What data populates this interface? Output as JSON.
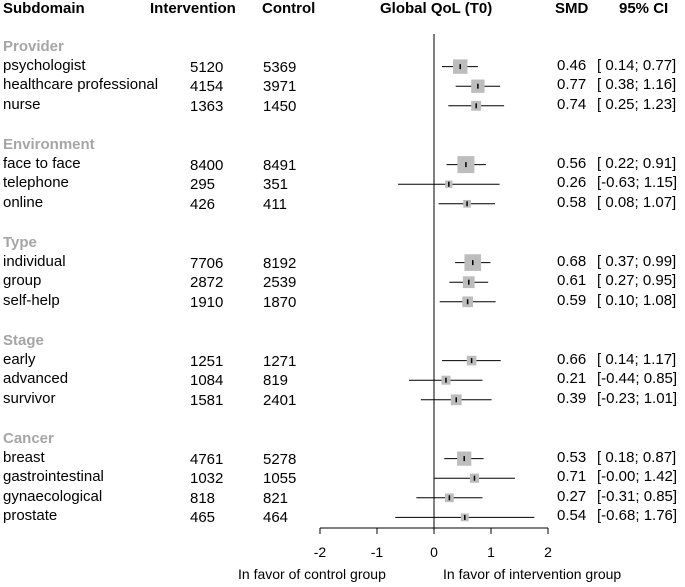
{
  "headers": {
    "subdomain": "Subdomain",
    "intervention": "Intervention",
    "control": "Control",
    "plot": "Global QoL (T0)",
    "smd": "SMD",
    "ci": "95% CI"
  },
  "x_axis_labels": {
    "left": "In favor of control group",
    "right": "In favor of intervention group"
  },
  "chart_data": {
    "type": "forest",
    "title": "Global QoL (T0)",
    "xlim": [
      -2,
      2
    ],
    "x_ticks": [
      -2,
      -1,
      0,
      1,
      2
    ],
    "reference_line": 0,
    "groups": [
      {
        "name": "Provider",
        "rows": [
          {
            "label": "psychologist",
            "intervention": 5120,
            "control": 5369,
            "smd": 0.46,
            "ci": [
              0.14,
              0.77
            ],
            "smd_text": "0.46",
            "ci_text": "[ 0.14; 0.77]"
          },
          {
            "label": "healthcare professional",
            "intervention": 4154,
            "control": 3971,
            "smd": 0.77,
            "ci": [
              0.38,
              1.16
            ],
            "smd_text": "0.77",
            "ci_text": "[ 0.38; 1.16]"
          },
          {
            "label": "nurse",
            "intervention": 1363,
            "control": 1450,
            "smd": 0.74,
            "ci": [
              0.25,
              1.23
            ],
            "smd_text": "0.74",
            "ci_text": "[ 0.25; 1.23]"
          }
        ]
      },
      {
        "name": "Environment",
        "rows": [
          {
            "label": "face to face",
            "intervention": 8400,
            "control": 8491,
            "smd": 0.56,
            "ci": [
              0.22,
              0.91
            ],
            "smd_text": "0.56",
            "ci_text": "[ 0.22; 0.91]"
          },
          {
            "label": "telephone",
            "intervention": 295,
            "control": 351,
            "smd": 0.26,
            "ci": [
              -0.63,
              1.15
            ],
            "smd_text": "0.26",
            "ci_text": "[-0.63; 1.15]"
          },
          {
            "label": "online",
            "intervention": 426,
            "control": 411,
            "smd": 0.58,
            "ci": [
              0.08,
              1.07
            ],
            "smd_text": "0.58",
            "ci_text": "[ 0.08; 1.07]"
          }
        ]
      },
      {
        "name": "Type",
        "rows": [
          {
            "label": "individual",
            "intervention": 7706,
            "control": 8192,
            "smd": 0.68,
            "ci": [
              0.37,
              0.99
            ],
            "smd_text": "0.68",
            "ci_text": "[ 0.37; 0.99]"
          },
          {
            "label": "group",
            "intervention": 2872,
            "control": 2539,
            "smd": 0.61,
            "ci": [
              0.27,
              0.95
            ],
            "smd_text": "0.61",
            "ci_text": "[ 0.27; 0.95]"
          },
          {
            "label": "self-help",
            "intervention": 1910,
            "control": 1870,
            "smd": 0.59,
            "ci": [
              0.1,
              1.08
            ],
            "smd_text": "0.59",
            "ci_text": "[ 0.10; 1.08]"
          }
        ]
      },
      {
        "name": "Stage",
        "rows": [
          {
            "label": "early",
            "intervention": 1251,
            "control": 1271,
            "smd": 0.66,
            "ci": [
              0.14,
              1.17
            ],
            "smd_text": "0.66",
            "ci_text": "[ 0.14; 1.17]"
          },
          {
            "label": "advanced",
            "intervention": 1084,
            "control": 819,
            "smd": 0.21,
            "ci": [
              -0.44,
              0.85
            ],
            "smd_text": "0.21",
            "ci_text": "[-0.44; 0.85]"
          },
          {
            "label": "survivor",
            "intervention": 1581,
            "control": 2401,
            "smd": 0.39,
            "ci": [
              -0.23,
              1.01
            ],
            "smd_text": "0.39",
            "ci_text": "[-0.23; 1.01]"
          }
        ]
      },
      {
        "name": "Cancer",
        "rows": [
          {
            "label": "breast",
            "intervention": 4761,
            "control": 5278,
            "smd": 0.53,
            "ci": [
              0.18,
              0.87
            ],
            "smd_text": "0.53",
            "ci_text": "[ 0.18; 0.87]"
          },
          {
            "label": "gastrointestinal",
            "intervention": 1032,
            "control": 1055,
            "smd": 0.71,
            "ci": [
              -0.0,
              1.42
            ],
            "smd_text": "0.71",
            "ci_text": "[-0.00; 1.42]"
          },
          {
            "label": "gynaecological",
            "intervention": 818,
            "control": 821,
            "smd": 0.27,
            "ci": [
              -0.31,
              0.85
            ],
            "smd_text": "0.27",
            "ci_text": "[-0.31; 0.85]"
          },
          {
            "label": "prostate",
            "intervention": 465,
            "control": 464,
            "smd": 0.54,
            "ci": [
              -0.68,
              1.76
            ],
            "smd_text": "0.54",
            "ci_text": "[-0.68; 1.76]"
          }
        ]
      }
    ]
  },
  "colors": {
    "group_heading": "#a6a6a6",
    "weight_box": "#bdbdbd",
    "line": "#000000"
  }
}
